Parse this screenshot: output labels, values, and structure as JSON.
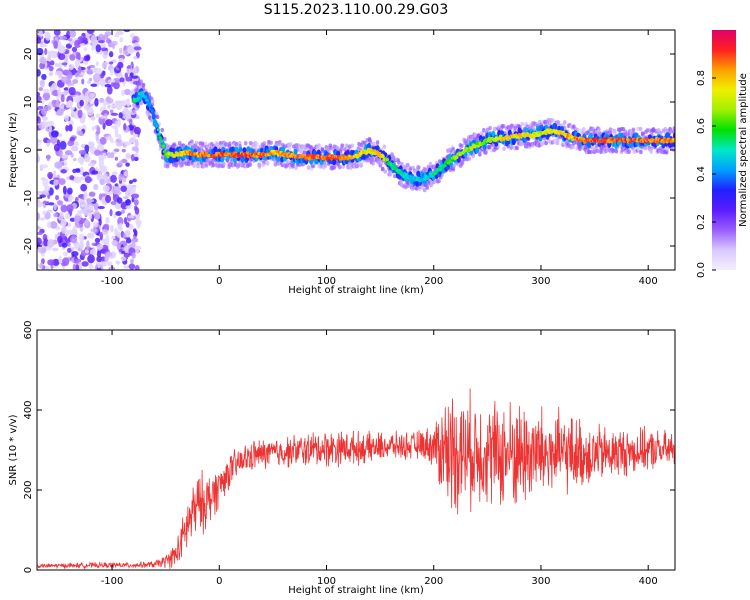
{
  "page_title": "S115.2023.110.00.29.G03",
  "chart_data": [
    {
      "type": "heatmap",
      "xlabel": "Height of straight line (km)",
      "ylabel": "Frequency (Hz)",
      "xlim": [
        -170,
        425
      ],
      "ylim": [
        -25,
        25
      ],
      "xticks": [
        "-100",
        "0",
        "100",
        "200",
        "300",
        "400"
      ],
      "xtick_values": [
        -100,
        0,
        100,
        200,
        300,
        400
      ],
      "yticks": [
        "-20",
        "-10",
        "0",
        "10",
        "20"
      ],
      "ytick_values": [
        -20,
        -10,
        0,
        10,
        20
      ],
      "colorbar": {
        "label": "Normalized spectral amplitude",
        "ticks": [
          "0.0",
          "0.2",
          "0.4",
          "0.6",
          "0.8"
        ],
        "tick_values": [
          0.0,
          0.2,
          0.4,
          0.6,
          0.8
        ],
        "range": [
          0,
          1
        ]
      },
      "noise_region_xmax": -75,
      "ridge": {
        "x": [
          -80,
          -72,
          -62,
          -50,
          -40,
          -30,
          -20,
          0,
          20,
          40,
          50,
          60,
          80,
          100,
          110,
          120,
          130,
          140,
          150,
          160,
          170,
          180,
          190,
          200,
          210,
          220,
          230,
          240,
          250,
          260,
          270,
          280,
          290,
          300,
          310,
          320,
          330,
          340,
          350,
          360,
          380,
          400,
          425
        ],
        "y": [
          10,
          12,
          8,
          -1,
          -1,
          -0.5,
          -1,
          -1,
          -1,
          -1,
          -0.5,
          -1,
          -1.5,
          -1.5,
          -1.5,
          -1.5,
          -1,
          0,
          -1,
          -3,
          -5,
          -6,
          -6,
          -5,
          -3,
          -1.5,
          0,
          1,
          2,
          2.5,
          2.5,
          3,
          3,
          3.5,
          4,
          3.5,
          2.5,
          2,
          2,
          2,
          2,
          2,
          2
        ]
      },
      "ridge_amplitude": [
        0.6,
        0.5,
        0.4,
        0.7,
        0.8,
        0.9,
        0.9,
        0.95,
        0.95,
        0.95,
        0.85,
        0.9,
        0.95,
        0.95,
        0.95,
        0.9,
        0.85,
        0.8,
        0.85,
        0.6,
        0.55,
        0.5,
        0.5,
        0.55,
        0.6,
        0.7,
        0.75,
        0.7,
        0.7,
        0.8,
        0.85,
        0.85,
        0.8,
        0.75,
        0.8,
        0.85,
        0.9,
        0.95,
        0.95,
        0.95,
        0.95,
        0.95,
        0.9
      ]
    },
    {
      "type": "line",
      "xlabel": "Height of straight line (km)",
      "ylabel": "SNR (10 * v/v)",
      "xlim": [
        -170,
        425
      ],
      "ylim": [
        0,
        600
      ],
      "xticks": [
        "-100",
        "0",
        "100",
        "200",
        "300",
        "400"
      ],
      "xtick_values": [
        -100,
        0,
        100,
        200,
        300,
        400
      ],
      "yticks": [
        "0",
        "200",
        "400",
        "600"
      ],
      "ytick_values": [
        0,
        200,
        400,
        600
      ],
      "line_color": "#ee3333",
      "series": [
        {
          "x": [
            -170,
            -120,
            -80,
            -60,
            -50,
            -40,
            -35,
            -30,
            -25,
            -20,
            -15,
            -10,
            0,
            10,
            20,
            30,
            40,
            60,
            80,
            100,
            120,
            140,
            160,
            180,
            190,
            200,
            205,
            210,
            220,
            230,
            240,
            250,
            260,
            280,
            300,
            320,
            340,
            360,
            380,
            400,
            425
          ],
          "values": [
            10,
            12,
            12,
            14,
            22,
            40,
            70,
            110,
            140,
            160,
            170,
            175,
            210,
            250,
            270,
            285,
            290,
            295,
            300,
            305,
            305,
            305,
            310,
            310,
            315,
            310,
            305,
            300,
            300,
            295,
            300,
            295,
            290,
            290,
            290,
            290,
            290,
            290,
            295,
            300,
            300
          ],
          "spread": [
            6,
            8,
            8,
            10,
            20,
            40,
            60,
            80,
            90,
            90,
            90,
            80,
            60,
            50,
            45,
            45,
            45,
            45,
            50,
            55,
            50,
            45,
            40,
            40,
            45,
            60,
            120,
            160,
            180,
            170,
            160,
            150,
            160,
            160,
            140,
            120,
            100,
            80,
            70,
            60,
            55
          ]
        }
      ]
    }
  ],
  "colors": {
    "colormap": [
      "#f4eeff",
      "#d9c8ff",
      "#9a5cff",
      "#5a1cff",
      "#2020ff",
      "#00a0ff",
      "#00e8c8",
      "#00e000",
      "#a0f000",
      "#f0f000",
      "#ffa000",
      "#ff2020",
      "#e0006a"
    ]
  }
}
